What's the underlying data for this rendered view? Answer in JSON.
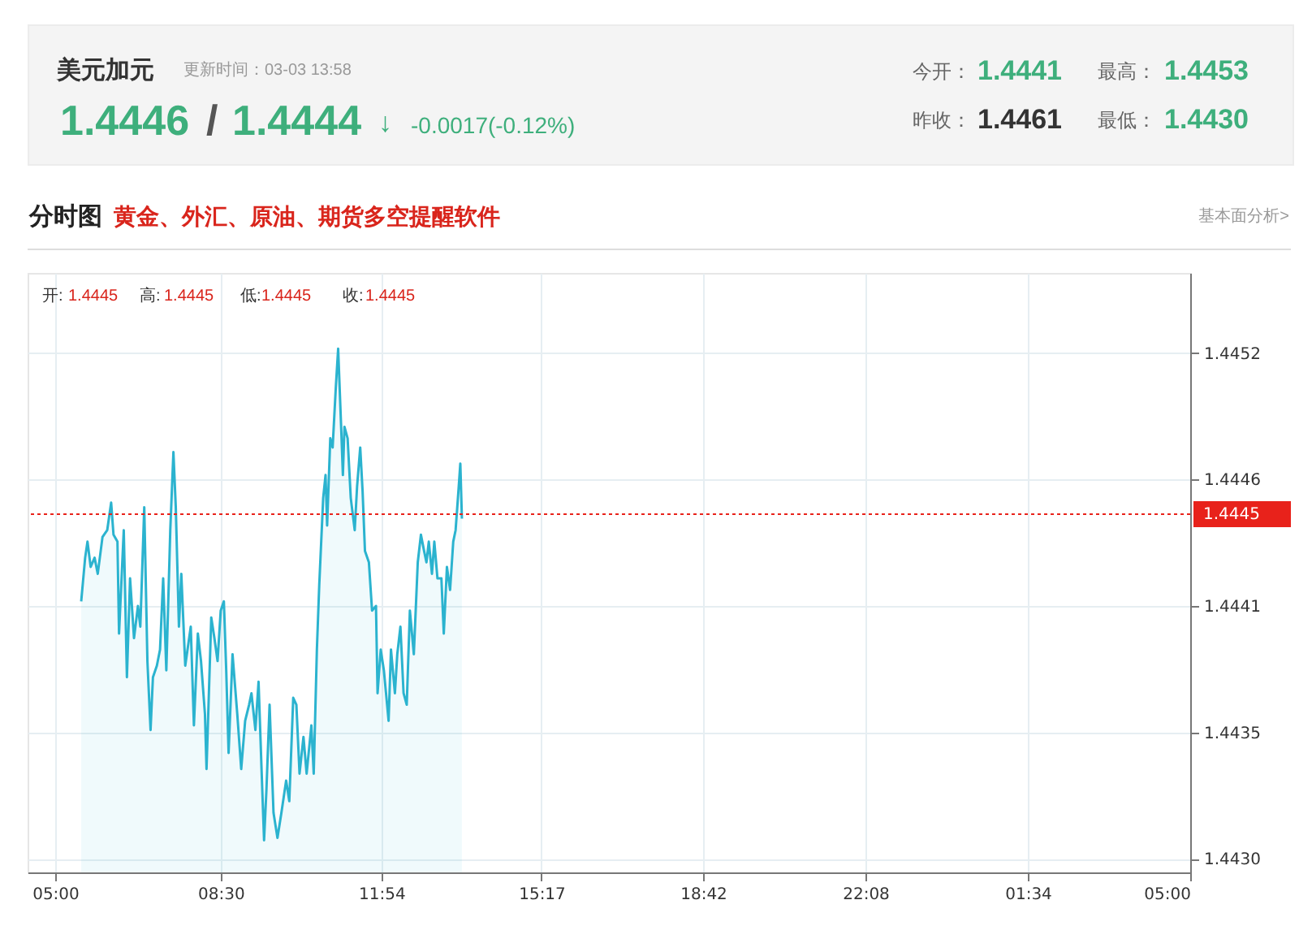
{
  "chart_data": {
    "type": "area",
    "title": "美元加元",
    "subtitle": "更新时间：03-03 13:58",
    "annotations": [
      "1.4446",
      "/",
      "1.4444",
      "↓",
      "-0.0017(-0.12%)",
      "今开：",
      "1.4441",
      "最高：",
      "1.4453",
      "昨收：",
      "1.4461",
      "最低：",
      "1.4430",
      "分时图",
      "黄金、外汇、原油、期货多空提醒软件",
      "基本面分析>",
      "开:",
      "1.4445",
      "高:",
      "1.4445",
      "低:",
      "1.4445",
      "收:",
      "1.4445"
    ],
    "series": [
      {
        "color": "#2bb3cf",
        "x": [
          "--03-03T05:33",
          "--03-03T05:38",
          "--03-03T05:41",
          "--03-03T05:45",
          "--03-03T05:50",
          "--03-03T05:54",
          "--03-03T06:00",
          "--03-03T06:06",
          "--03-03T06:11",
          "--03-03T06:14",
          "--03-03T06:19",
          "--03-03T06:21",
          "--03-03T06:27",
          "--03-03T06:31",
          "--03-03T06:35",
          "--03-03T06:40",
          "--03-03T06:45",
          "--03-03T06:48",
          "--03-03T06:53",
          "--03-03T06:57",
          "--03-03T07:01",
          "--03-03T07:04",
          "--03-03T07:09",
          "--03-03T07:13",
          "--03-03T07:17",
          "--03-03T07:21",
          "--03-03T07:26",
          "--03-03T07:30",
          "--03-03T07:33",
          "--03-03T07:37",
          "--03-03T07:40",
          "--03-03T07:45",
          "--03-03T07:52",
          "--03-03T07:56",
          "--03-03T08:01",
          "--03-03T08:05",
          "--03-03T08:10",
          "--03-03T08:12",
          "--03-03T08:18",
          "--03-03T08:22",
          "--03-03T08:26",
          "--03-03T08:30",
          "--03-03T08:34",
          "--03-03T08:37",
          "--03-03T08:40",
          "--03-03T08:45",
          "--03-03T08:51",
          "--03-03T08:56",
          "--03-03T09:01",
          "--03-03T09:06",
          "--03-03T09:09",
          "--03-03T09:14",
          "--03-03T09:18",
          "--03-03T09:22",
          "--03-03T09:25",
          "--03-03T09:28",
          "--03-03T09:32",
          "--03-03T09:37",
          "--03-03T09:42",
          "--03-03T09:47",
          "--03-03T09:53",
          "--03-03T09:57",
          "--03-03T10:02",
          "--03-03T10:06",
          "--03-03T10:10",
          "--03-03T10:15",
          "--03-03T10:19",
          "--03-03T10:25",
          "--03-03T10:28",
          "--03-03T10:32",
          "--03-03T10:35",
          "--03-03T10:40",
          "--03-03T10:43",
          "--03-03T10:45",
          "--03-03T10:49",
          "--03-03T10:52",
          "--03-03T10:56",
          "--03-03T10:59",
          "--03-03T11:03",
          "--03-03T11:05",
          "--03-03T11:07",
          "--03-03T11:11",
          "--03-03T11:15",
          "--03-03T11:20",
          "--03-03T11:23",
          "--03-03T11:27",
          "--03-03T11:30",
          "--03-03T11:33",
          "--03-03T11:38",
          "--03-03T11:42",
          "--03-03T11:47",
          "--03-03T11:49",
          "--03-03T11:53",
          "--03-03T11:57",
          "--03-03T12:03",
          "--03-03T12:06",
          "--03-03T12:11",
          "--03-03T12:14",
          "--03-03T12:18",
          "--03-03T12:22",
          "--03-03T12:26",
          "--03-03T12:30",
          "--03-03T12:35",
          "--03-03T12:40",
          "--03-03T12:44",
          "--03-03T12:48",
          "--03-03T12:51",
          "--03-03T12:54",
          "--03-03T12:58",
          "--03-03T13:01",
          "--03-03T13:05",
          "--03-03T13:10",
          "--03-03T13:13",
          "--03-03T13:17",
          "--03-03T13:21",
          "--03-03T13:25",
          "--03-03T13:28",
          "--03-03T13:32",
          "--03-03T13:34",
          "--03-03T13:36"
        ],
        "values": [
          1.44412,
          1.44431,
          1.44438,
          1.44427,
          1.44431,
          1.44424,
          1.4444,
          1.44443,
          1.44455,
          1.44441,
          1.44438,
          1.44398,
          1.44443,
          1.44379,
          1.44422,
          1.44396,
          1.4441,
          1.44401,
          1.44453,
          1.44386,
          1.44356,
          1.44379,
          1.44384,
          1.44391,
          1.44422,
          1.44382,
          1.44443,
          1.44477,
          1.44453,
          1.44401,
          1.44424,
          1.44384,
          1.44401,
          1.44358,
          1.44398,
          1.44386,
          1.44363,
          1.44339,
          1.44405,
          1.44396,
          1.44386,
          1.44408,
          1.44412,
          1.44382,
          1.44346,
          1.44389,
          1.44363,
          1.44339,
          1.4436,
          1.44367,
          1.44372,
          1.44356,
          1.44377,
          1.44337,
          1.44308,
          1.4433,
          1.44367,
          1.4432,
          1.44309,
          1.4432,
          1.44334,
          1.44325,
          1.4437,
          1.44367,
          1.44337,
          1.44353,
          1.44337,
          1.44358,
          1.44337,
          1.44391,
          1.44419,
          1.44457,
          1.44467,
          1.44445,
          1.44483,
          1.44479,
          1.44505,
          1.44522,
          1.44486,
          1.44467,
          1.44488,
          1.44483,
          1.44457,
          1.44443,
          1.44462,
          1.44479,
          1.4446,
          1.44434,
          1.44429,
          1.44408,
          1.4441,
          1.44372,
          1.44391,
          1.44382,
          1.4436,
          1.44391,
          1.44372,
          1.44389,
          1.44401,
          1.44372,
          1.44367,
          1.44408,
          1.44389,
          1.44429,
          1.44441,
          1.44434,
          1.44429,
          1.44438,
          1.44424,
          1.44438,
          1.44422,
          1.44422,
          1.44398,
          1.44427,
          1.44417,
          1.44438,
          1.44443,
          1.44462,
          1.44472,
          1.44448
        ]
      }
    ],
    "xlim": [
      "--03-03T04:25",
      "--03-04T05:00"
    ],
    "xticks": [
      {
        "value": "--03-03T05:00",
        "label": "05:00"
      },
      {
        "value": "--03-03T08:30",
        "label": "08:30"
      },
      {
        "value": "--03-03T11:54",
        "label": "11:54"
      },
      {
        "value": "--03-03T15:17",
        "label": "15:17"
      },
      {
        "value": "--03-03T18:42",
        "label": "18:42"
      },
      {
        "value": "--03-03T22:08",
        "label": "22:08"
      },
      {
        "value": "--03-04T01:34",
        "label": "01:34"
      },
      {
        "value": "--03-04T05:00",
        "label": "05:00"
      }
    ],
    "ylim": [
      1.44294,
      1.44555
    ],
    "yticks": [
      {
        "value": 1.443,
        "label": "1.4430"
      },
      {
        "value": 1.44355,
        "label": "1.4435"
      },
      {
        "value": 1.4441,
        "label": "1.4441"
      },
      {
        "value": 1.44465,
        "label": "1.4446"
      },
      {
        "value": 1.4452,
        "label": "1.4452"
      }
    ],
    "ref_lines": [
      {
        "axis": "y",
        "value": 1.4445,
        "label": "1.4445",
        "color": "#e8221b",
        "line_style": "dotted"
      }
    ],
    "grid": true
  }
}
